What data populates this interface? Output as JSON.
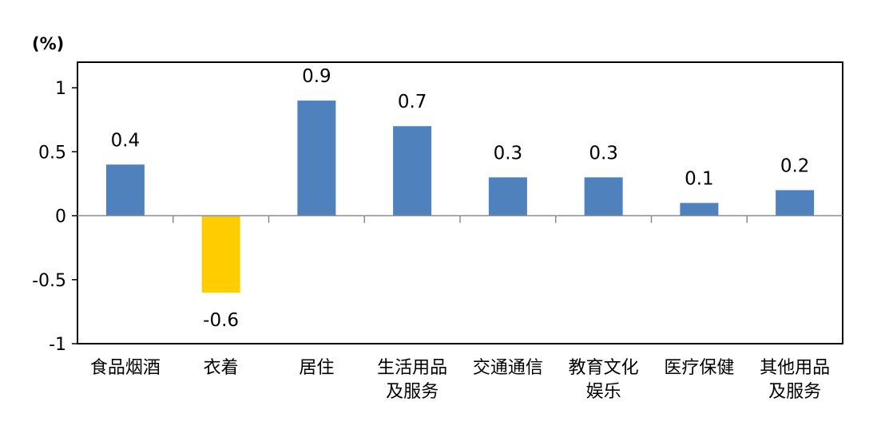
{
  "chart_data": {
    "type": "bar",
    "unit_label": "(%)",
    "categories": [
      [
        "食品烟酒"
      ],
      [
        "衣着"
      ],
      [
        "居住"
      ],
      [
        "生活用品",
        "及服务"
      ],
      [
        "交通通信"
      ],
      [
        "教育文化",
        "娱乐"
      ],
      [
        "医疗保健"
      ],
      [
        "其他用品",
        "及服务"
      ]
    ],
    "values": [
      0.4,
      -0.6,
      0.9,
      0.7,
      0.3,
      0.3,
      0.1,
      0.2
    ],
    "data_labels": [
      "0.4",
      "-0.6",
      "0.9",
      "0.7",
      "0.3",
      "0.3",
      "0.1",
      "0.2"
    ],
    "ylim": [
      -1,
      1.2
    ],
    "yticks": [
      1,
      0.5,
      0,
      -0.5,
      -1
    ],
    "ytick_labels": [
      "1",
      "0.5",
      "0",
      "-0.5",
      "-1"
    ],
    "positive_color": "#4F81BD",
    "negative_color": "#FFCC00",
    "grid": false
  }
}
